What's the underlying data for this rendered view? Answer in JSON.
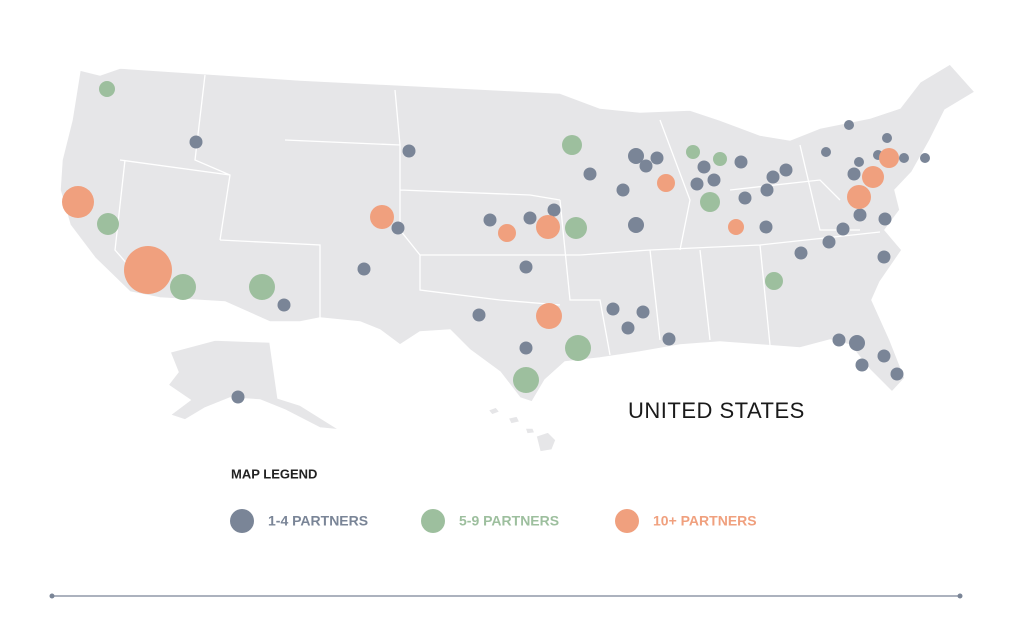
{
  "map": {
    "title": "UNITED STATES",
    "legend": {
      "title": "MAP LEGEND",
      "items": [
        {
          "label": "1-4 PARTNERS",
          "color": "#7a8597"
        },
        {
          "label": "5-9 PARTNERS",
          "color": "#9dbf9e"
        },
        {
          "label": "10+ PARTNERS",
          "color": "#f0a07e"
        }
      ]
    }
  }
}
